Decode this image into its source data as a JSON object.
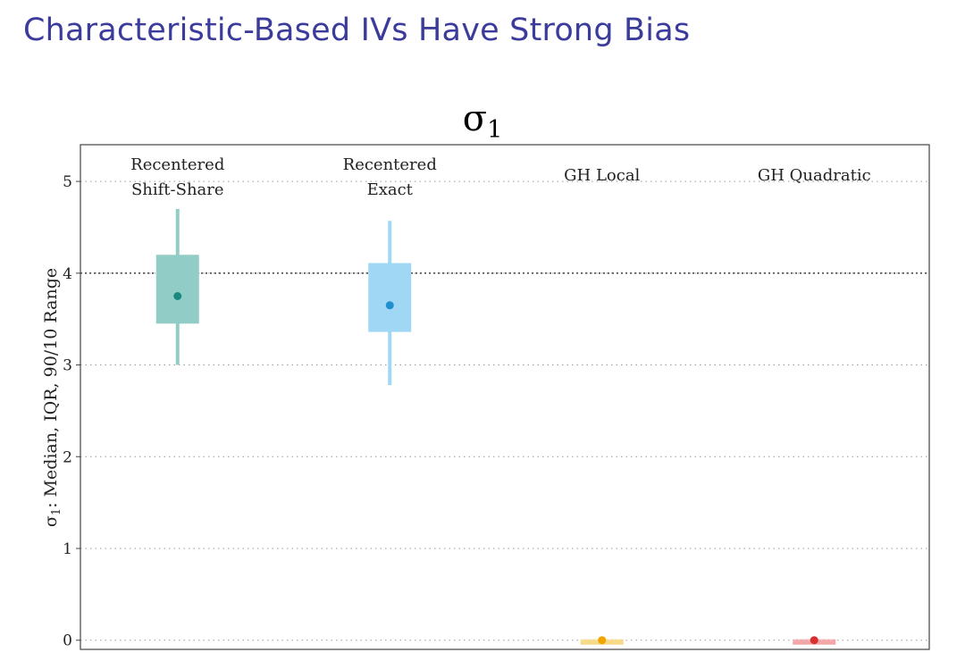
{
  "slide": {
    "title": "Characteristic-Based IVs Have Strong Bias"
  },
  "chart_data": {
    "type": "boxplot",
    "title": "σ1",
    "title_parts": {
      "symbol": "σ",
      "subscript": "1"
    },
    "ylabel": "σ1: Median, IQR, 90/10 Range",
    "ylabel_parts": {
      "symbol": "σ",
      "subscript": "1",
      "rest": ": Median, IQR, 90/10 Range"
    },
    "ylim": [
      -0.1,
      5.4
    ],
    "yticks": [
      0,
      1,
      2,
      3,
      4,
      5
    ],
    "grid": "horizontal-dotted",
    "true_value": 4.0,
    "series": [
      {
        "name_lines": [
          "Recentered",
          "Shift-Share"
        ],
        "p10": 3.0,
        "q1": 3.45,
        "median": 3.75,
        "q3": 4.2,
        "p90": 4.7,
        "box_color": "#91cdc6",
        "dot_color": "#1a8a80"
      },
      {
        "name_lines": [
          "Recentered",
          "Exact"
        ],
        "p10": 2.78,
        "q1": 3.36,
        "median": 3.65,
        "q3": 4.11,
        "p90": 4.57,
        "box_color": "#9fd7f4",
        "dot_color": "#1f8fcf"
      },
      {
        "name_lines": [
          "GH Local"
        ],
        "p10": -0.01,
        "q1": -0.01,
        "median": 0.0,
        "q3": 0.01,
        "p90": 0.01,
        "box_color": "#f7d98a",
        "dot_color": "#f0a500"
      },
      {
        "name_lines": [
          "GH Quadratic"
        ],
        "p10": -0.01,
        "q1": -0.01,
        "median": 0.0,
        "q3": 0.01,
        "p90": 0.01,
        "box_color": "#f1a7a7",
        "dot_color": "#d92f2f"
      }
    ]
  }
}
